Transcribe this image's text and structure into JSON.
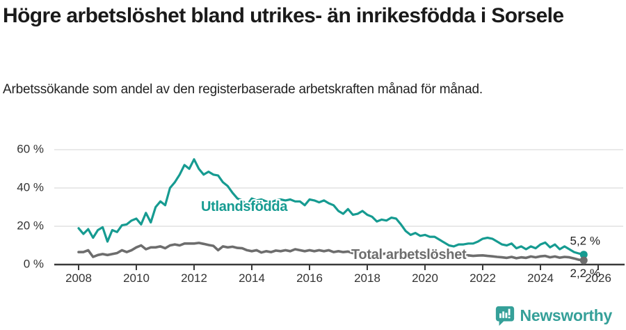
{
  "title": "Högre arbetslöshet bland utrikes- än inrikesfödda i Sorsele",
  "subtitle": "Arbetssökande som andel av den registerbaserade arbetskraften månad för månad.",
  "colors": {
    "accent_teal": "#169b91",
    "series_gray": "#6d6d6d",
    "grid": "#dcdcdc",
    "axis": "#3a3a3a",
    "tick_text": "#333333",
    "end_label_text": "#222222",
    "logo_teal": "#35a099"
  },
  "footer": {
    "brand": "Newsworthy",
    "logo_icon": "bar-chart-speech-bubble-icon"
  },
  "chart_data": {
    "type": "line",
    "unit": "%",
    "x_start_year": 2008.0,
    "x_step_months": 2,
    "x_axis": {
      "ticks": [
        2008,
        2010,
        2012,
        2014,
        2016,
        2018,
        2020,
        2022,
        2024,
        2026
      ],
      "range": [
        2008,
        2026
      ]
    },
    "y_axis": {
      "ticks": [
        {
          "value": 0,
          "label": "0 %"
        },
        {
          "value": 20,
          "label": "20 %"
        },
        {
          "value": 40,
          "label": "40 %"
        },
        {
          "value": 60,
          "label": "60 %"
        }
      ],
      "ylim": [
        0,
        60
      ],
      "grid": true
    },
    "series": [
      {
        "name": "Utlandsfödda",
        "color": "#169b91",
        "end_label": "5,2 %",
        "end_value": 5.2,
        "values": [
          19,
          16,
          18.5,
          14,
          18,
          19.5,
          12,
          18,
          17,
          20.5,
          21,
          23,
          24,
          21,
          27,
          22,
          30,
          33,
          31,
          40,
          43,
          47,
          52,
          50,
          55,
          50,
          47,
          48.5,
          47,
          46.5,
          43,
          41,
          37.5,
          34.5,
          33.5,
          31,
          34.5,
          33.5,
          34,
          33,
          32.5,
          33.5,
          34,
          33.5,
          34,
          33,
          33,
          31,
          34,
          33.5,
          32.5,
          33.5,
          32,
          31,
          28,
          26.5,
          29,
          26,
          26.5,
          28,
          26,
          25,
          22.5,
          23.5,
          23,
          24.5,
          24,
          21,
          17.5,
          15.5,
          16.5,
          15,
          15.5,
          14.5,
          14.5,
          13,
          11.5,
          10,
          9.5,
          10.5,
          10.5,
          11,
          11,
          12,
          13.5,
          14,
          13.5,
          12,
          10.5,
          10,
          11,
          8.5,
          9.5,
          8,
          9.5,
          8.5,
          10.5,
          11.5,
          9,
          10.5,
          8,
          9.5,
          8,
          6.5,
          5.8,
          5.2
        ]
      },
      {
        "name": "Total arbetslöshet",
        "color": "#6d6d6d",
        "end_label": "2,2 %",
        "end_value": 2.2,
        "values": [
          6.5,
          6.5,
          7.5,
          4,
          5,
          5.5,
          5,
          5.5,
          6,
          7.5,
          6.5,
          7.5,
          9,
          10,
          8,
          9,
          9,
          9.5,
          8.5,
          10,
          10.5,
          10,
          11,
          11,
          11,
          11.3,
          10.8,
          10.2,
          9.8,
          7.5,
          9.5,
          9,
          9.3,
          8.7,
          8.5,
          7.5,
          7,
          7.5,
          6.3,
          7,
          6.5,
          7.3,
          7,
          7.5,
          7,
          8,
          7.5,
          7,
          7.5,
          7,
          7.5,
          7,
          7.5,
          6.5,
          7,
          6.5,
          6.8,
          6,
          6.5,
          6,
          6.3,
          5.8,
          6,
          5.5,
          5.8,
          5.5,
          6,
          5.5,
          5.8,
          6,
          6.3,
          6,
          6.2,
          5.8,
          5.5,
          5.2,
          5,
          5,
          4.8,
          5,
          4.7,
          4.8,
          4.5,
          4.7,
          4.8,
          4.5,
          4.3,
          4,
          3.8,
          3.5,
          4,
          3.3,
          3.8,
          3.5,
          4.2,
          3.8,
          4.3,
          4.5,
          3.8,
          4.2,
          3.6,
          4,
          3.8,
          3.2,
          2.5,
          2.2
        ]
      }
    ]
  }
}
